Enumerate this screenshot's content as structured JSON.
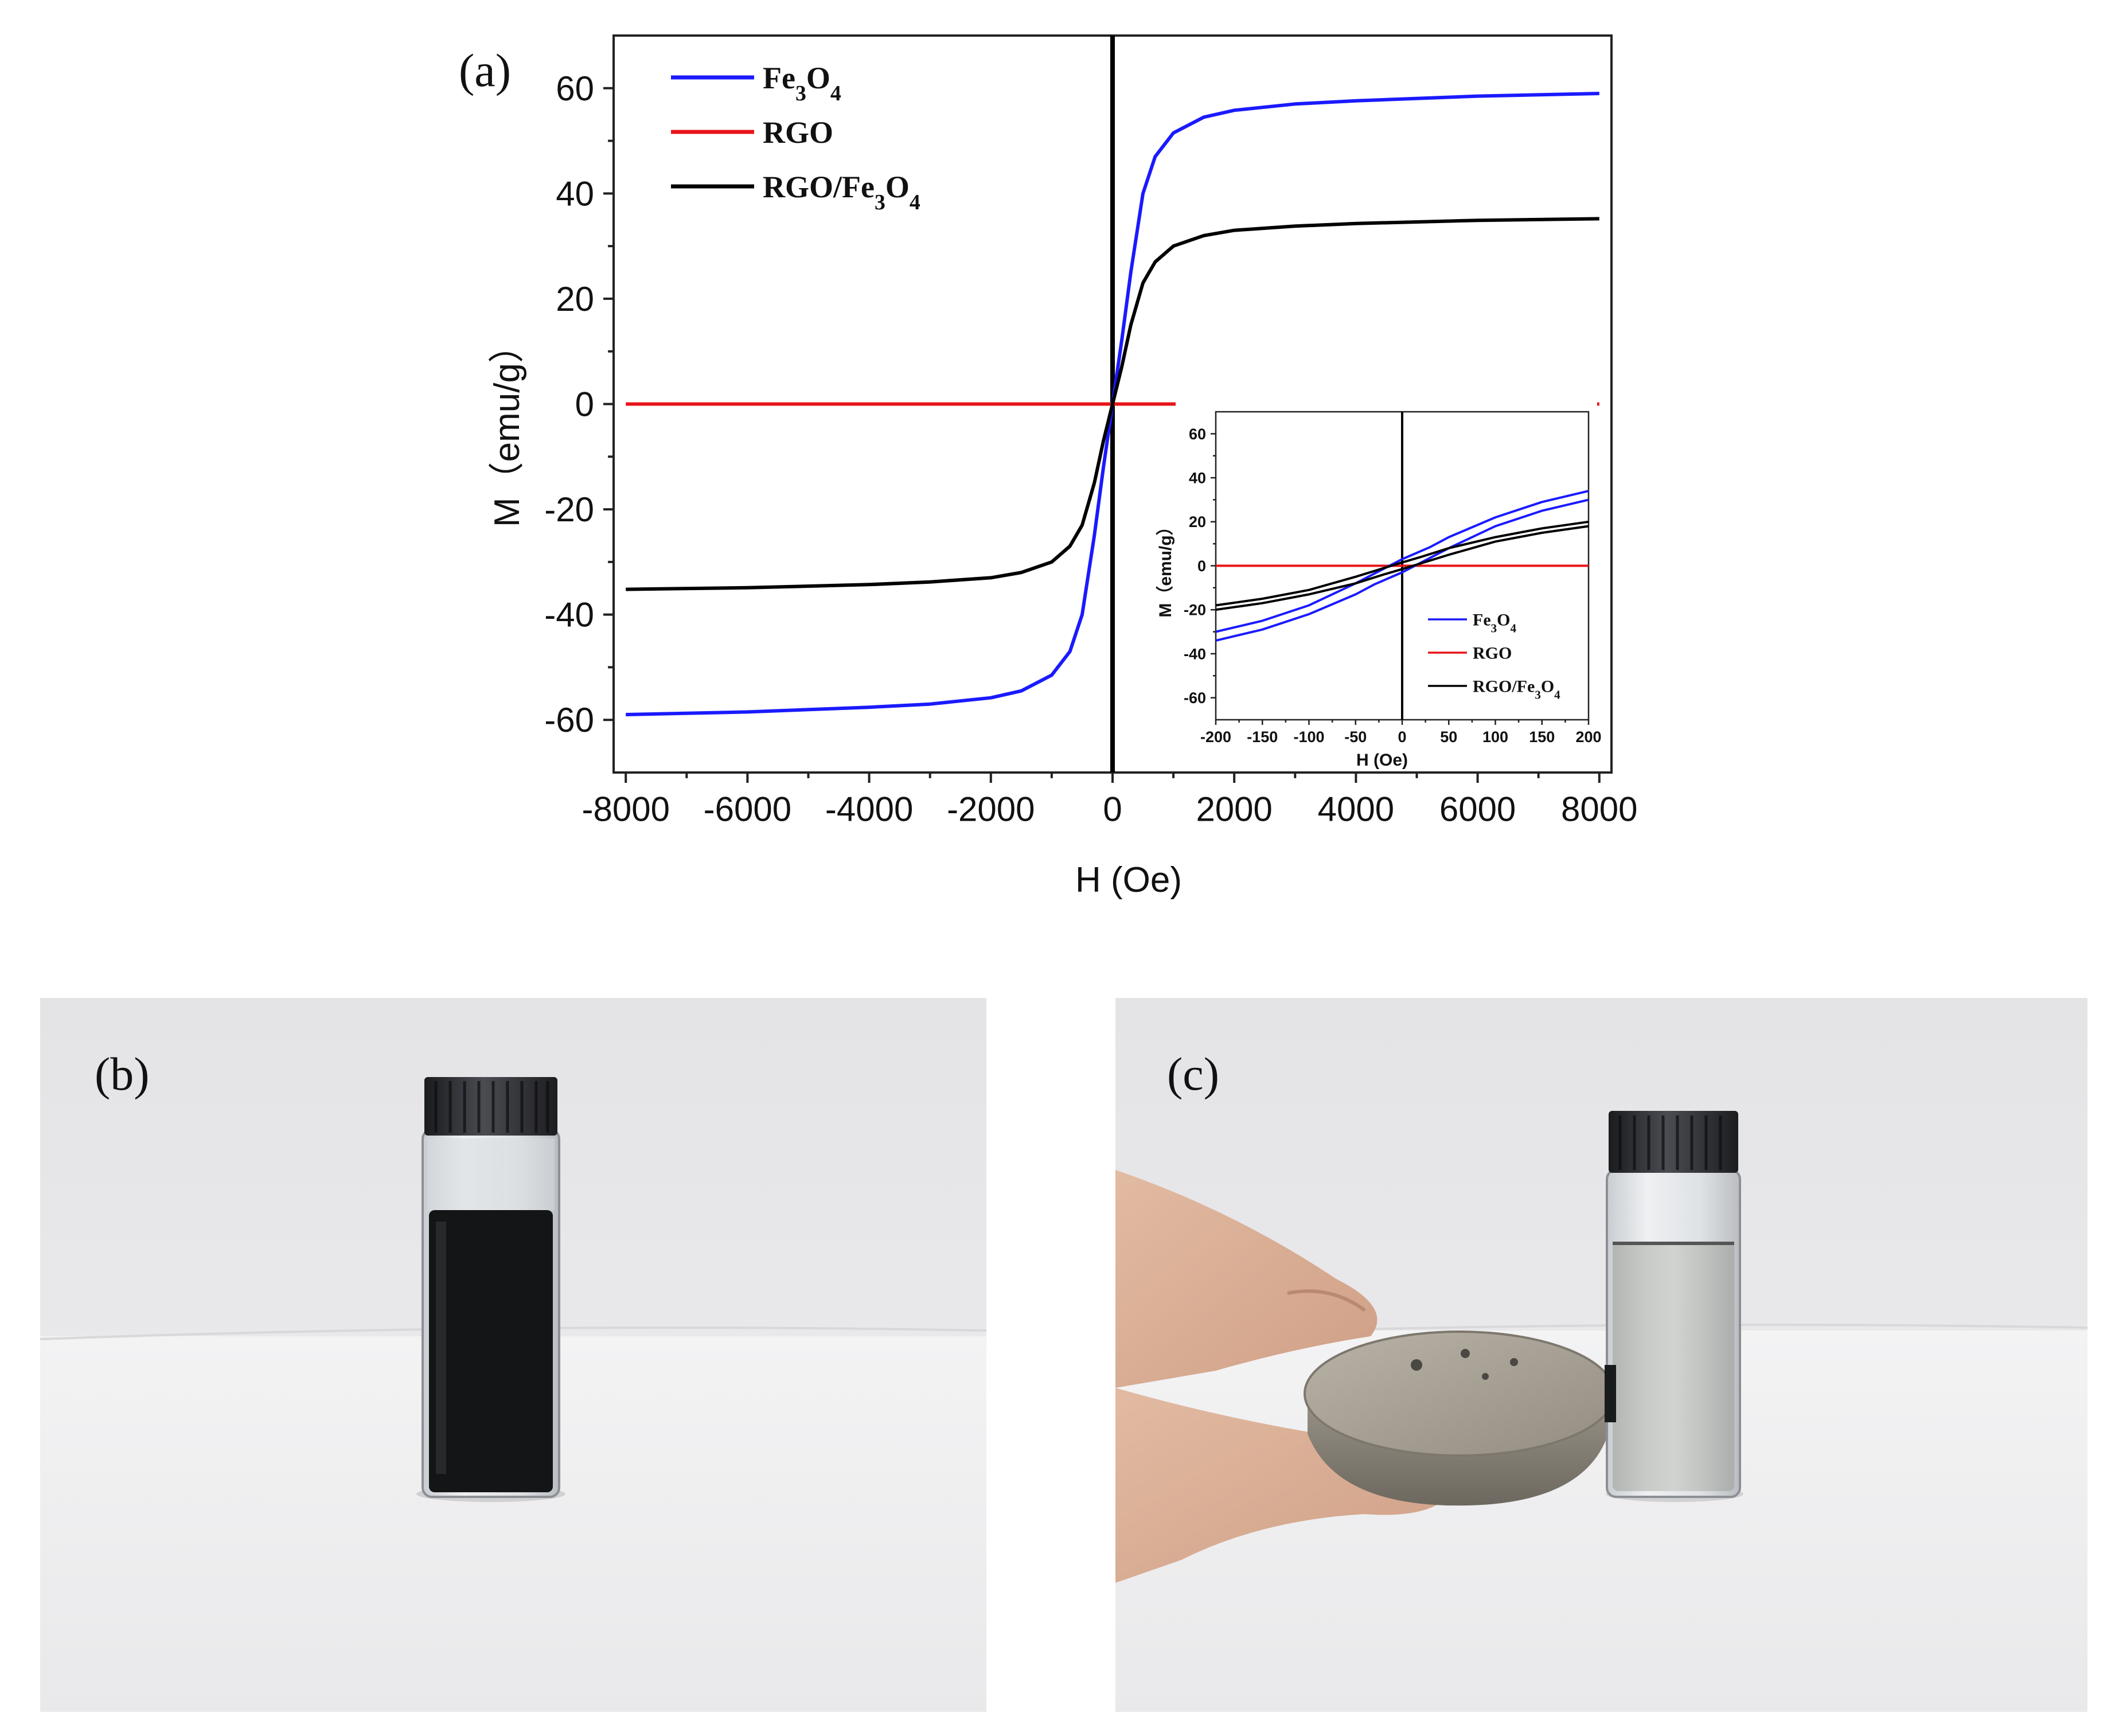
{
  "panels": {
    "a": "(a)",
    "b": "(b)",
    "c": "(c)"
  },
  "chart_data": [
    {
      "type": "line",
      "xlabel": "H (Oe)",
      "ylabel": "M（emu/g）",
      "xlim": [
        -8200,
        8200
      ],
      "ylim": [
        -70,
        70
      ],
      "xticks": [
        -8000,
        -6000,
        -4000,
        -2000,
        0,
        2000,
        4000,
        6000,
        8000
      ],
      "yticks": [
        -60,
        -40,
        -20,
        0,
        20,
        40,
        60
      ],
      "legend_position": "top-left",
      "series": [
        {
          "name": "Fe3O4",
          "color": "#1a1aff",
          "x": [
            -8000,
            -6000,
            -4000,
            -3000,
            -2000,
            -1500,
            -1000,
            -700,
            -500,
            -300,
            -150,
            0,
            150,
            300,
            500,
            700,
            1000,
            1500,
            2000,
            3000,
            4000,
            6000,
            8000
          ],
          "y": [
            -59,
            -58.5,
            -57.6,
            -57.0,
            -55.8,
            -54.5,
            -51.5,
            -47.0,
            -40.0,
            -25.0,
            -12.0,
            0,
            12.0,
            25.0,
            40.0,
            47.0,
            51.5,
            54.5,
            55.8,
            57.0,
            57.6,
            58.5,
            59
          ]
        },
        {
          "name": "RGO",
          "color": "#e8141a",
          "x": [
            -8000,
            8000
          ],
          "y": [
            0,
            0
          ]
        },
        {
          "name": "RGO/Fe3O4",
          "color": "#000000",
          "x": [
            -8000,
            -6000,
            -4000,
            -3000,
            -2000,
            -1500,
            -1000,
            -700,
            -500,
            -300,
            -150,
            0,
            150,
            300,
            500,
            700,
            1000,
            1500,
            2000,
            3000,
            4000,
            6000,
            8000
          ],
          "y": [
            -35.2,
            -34.9,
            -34.3,
            -33.8,
            -33.0,
            -32.0,
            -30.0,
            -27.0,
            -23.0,
            -15.0,
            -7.0,
            0,
            7.0,
            15.0,
            23.0,
            27.0,
            30.0,
            32.0,
            33.0,
            33.8,
            34.3,
            34.9,
            35.2
          ]
        }
      ],
      "legend": [
        {
          "main": "Fe",
          "s1": "3",
          "mid": "O",
          "s2": "4",
          "color": "#1a1aff"
        },
        {
          "main": "RGO",
          "s1": "",
          "mid": "",
          "s2": "",
          "color": "#e8141a"
        },
        {
          "main": "RGO/Fe",
          "s1": "3",
          "mid": "O",
          "s2": "4",
          "color": "#000000"
        }
      ]
    },
    {
      "type": "line",
      "xlabel": "H (Oe)",
      "ylabel": "M（emu/g）",
      "xlim": [
        -200,
        200
      ],
      "ylim": [
        -70,
        70
      ],
      "xticks": [
        -200,
        -150,
        -100,
        -50,
        0,
        50,
        100,
        150,
        200
      ],
      "yticks": [
        -60,
        -40,
        -20,
        0,
        20,
        40,
        60
      ],
      "legend_position": "bottom-right",
      "series": [
        {
          "name": "Fe3O4 (ascending branch)",
          "color": "#1a1aff",
          "x": [
            -200,
            -150,
            -100,
            -50,
            -30,
            0,
            50,
            100,
            150,
            200
          ],
          "y": [
            -34,
            -29,
            -22,
            -13,
            -8.5,
            -3,
            8,
            18,
            25,
            30
          ]
        },
        {
          "name": "Fe3O4 (descending branch)",
          "color": "#1a1aff",
          "x": [
            -200,
            -150,
            -100,
            -50,
            0,
            30,
            50,
            100,
            150,
            200
          ],
          "y": [
            -30,
            -25,
            -18,
            -8,
            3,
            8.5,
            13,
            22,
            29,
            34
          ]
        },
        {
          "name": "RGO",
          "color": "#e8141a",
          "x": [
            -200,
            200
          ],
          "y": [
            0,
            0
          ]
        },
        {
          "name": "RGO/Fe3O4 (ascending branch)",
          "color": "#000000",
          "x": [
            -200,
            -150,
            -100,
            -50,
            -20,
            0,
            50,
            100,
            150,
            200
          ],
          "y": [
            -20,
            -17,
            -13,
            -8,
            -4,
            -1.5,
            5,
            11,
            15,
            18
          ]
        },
        {
          "name": "RGO/Fe3O4 (descending branch)",
          "color": "#000000",
          "x": [
            -200,
            -150,
            -100,
            -50,
            0,
            20,
            50,
            100,
            150,
            200
          ],
          "y": [
            -18,
            -15,
            -11,
            -5,
            1.5,
            4,
            8,
            13,
            17,
            20
          ]
        }
      ],
      "legend": [
        {
          "main": "Fe",
          "s1": "3",
          "mid": "O",
          "s2": "4",
          "color": "#1a1aff"
        },
        {
          "main": "RGO",
          "s1": "",
          "mid": "",
          "s2": "",
          "color": "#e8141a"
        },
        {
          "main": "RGO/Fe",
          "s1": "3",
          "mid": "O",
          "s2": "4",
          "color": "#000000"
        }
      ]
    }
  ]
}
